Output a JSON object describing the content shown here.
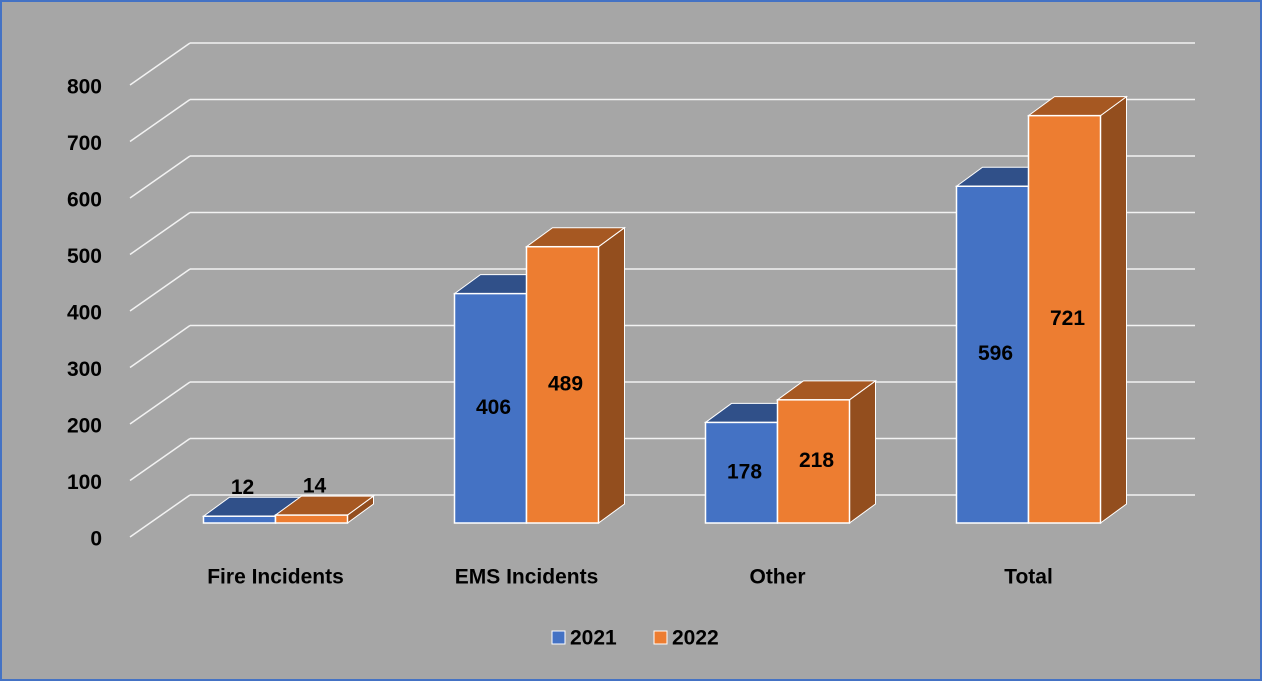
{
  "chart_data": {
    "type": "bar3d",
    "categories": [
      "Fire Incidents",
      "EMS Incidents",
      "Other",
      "Total"
    ],
    "series": [
      {
        "name": "2021",
        "color": "#4472c4",
        "values": [
          12,
          406,
          178,
          596
        ]
      },
      {
        "name": "2022",
        "color": "#ed7d31",
        "values": [
          14,
          489,
          218,
          721
        ]
      }
    ],
    "ylim": [
      0,
      800
    ],
    "yticks": [
      0,
      100,
      200,
      300,
      400,
      500,
      600,
      700,
      800
    ],
    "grid": true,
    "legend": "bottom"
  }
}
